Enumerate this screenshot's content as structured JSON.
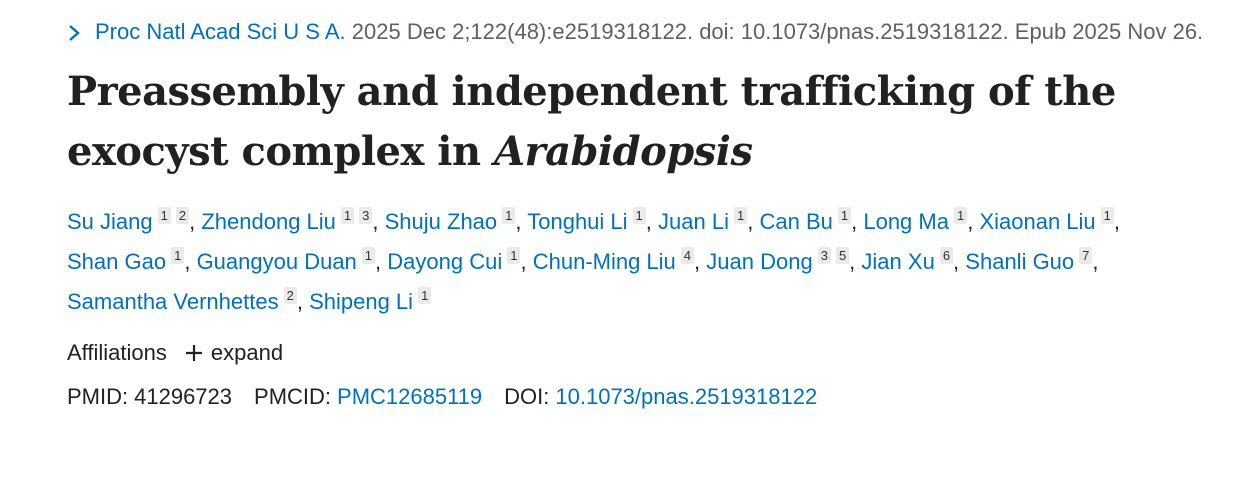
{
  "citation": {
    "journal": "Proc Natl Acad Sci U S A.",
    "details": "2025 Dec 2;122(48):e2519318122. doi: 10.1073/pnas.2519318122. Epub 2025 Nov 26."
  },
  "title": {
    "text": "Preassembly and independent trafficking of the exocyst complex in",
    "italic": "Arabidopsis"
  },
  "authors": [
    {
      "name": "Su Jiang",
      "affiliations": [
        1,
        2
      ]
    },
    {
      "name": "Zhendong Liu",
      "affiliations": [
        1,
        3
      ]
    },
    {
      "name": "Shuju Zhao",
      "affiliations": [
        1
      ]
    },
    {
      "name": "Tonghui Li",
      "affiliations": [
        1
      ]
    },
    {
      "name": "Juan Li",
      "affiliations": [
        1
      ]
    },
    {
      "name": "Can Bu",
      "affiliations": [
        1
      ]
    },
    {
      "name": "Long Ma",
      "affiliations": [
        1
      ]
    },
    {
      "name": "Xiaonan Liu",
      "affiliations": [
        1
      ]
    },
    {
      "name": "Shan Gao",
      "affiliations": [
        1
      ]
    },
    {
      "name": "Guangyou Duan",
      "affiliations": [
        1
      ]
    },
    {
      "name": "Dayong Cui",
      "affiliations": [
        1
      ]
    },
    {
      "name": "Chun-Ming Liu",
      "affiliations": [
        4
      ]
    },
    {
      "name": "Juan Dong",
      "affiliations": [
        3,
        5
      ]
    },
    {
      "name": "Jian Xu",
      "affiliations": [
        6
      ]
    },
    {
      "name": "Shanli Guo",
      "affiliations": [
        7
      ]
    },
    {
      "name": "Samantha Vernhettes",
      "affiliations": [
        2
      ]
    },
    {
      "name": "Shipeng Li",
      "affiliations": [
        1
      ]
    }
  ],
  "affiliations": {
    "label": "Affiliations",
    "toggle": "expand"
  },
  "identifiers": [
    {
      "label": "PMID:",
      "value": "41296723"
    },
    {
      "label": "PMCID:",
      "value": "PMC12685119"
    },
    {
      "label": "DOI:",
      "value": "10.1073/pnas.2519318122"
    }
  ]
}
